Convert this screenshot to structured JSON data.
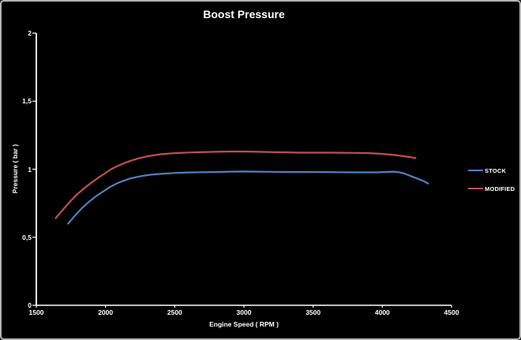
{
  "window": {
    "background": "#000000",
    "frame_border_color": "#b5b5b5",
    "text_color": "#ffffff",
    "axis_color": "#ffffff"
  },
  "chart_data": {
    "type": "line",
    "title": "Boost Pressure",
    "xlabel": "Engine Speed ( RPM )",
    "ylabel": "Pressure ( bar )",
    "xlim": [
      1500,
      4500
    ],
    "ylim": [
      0,
      2
    ],
    "grid": false,
    "legend_position": "right-middle",
    "xticks": {
      "values": [
        1500,
        2000,
        2500,
        3000,
        3500,
        4000,
        4500
      ],
      "labels": [
        "1500",
        "2000",
        "2500",
        "3000",
        "3500",
        "4000",
        "4500"
      ]
    },
    "yticks": {
      "values": [
        0,
        0.5,
        1,
        1.5,
        2
      ],
      "labels": [
        "0",
        "0,5",
        "1",
        "1,5",
        "2"
      ]
    },
    "series": [
      {
        "name": "STOCK",
        "color": "#4f81bd",
        "x": [
          1730,
          1780,
          1830,
          1880,
          1930,
          1980,
          2030,
          2080,
          2130,
          2180,
          2230,
          2280,
          2330,
          2400,
          2500,
          2600,
          2700,
          2800,
          2900,
          3000,
          3100,
          3200,
          3300,
          3400,
          3500,
          3600,
          3700,
          3800,
          3900,
          3960,
          4020,
          4080,
          4120,
          4160,
          4200,
          4250,
          4300,
          4330
        ],
        "y": [
          0.6,
          0.66,
          0.715,
          0.76,
          0.8,
          0.835,
          0.868,
          0.895,
          0.915,
          0.932,
          0.944,
          0.953,
          0.96,
          0.966,
          0.972,
          0.976,
          0.978,
          0.98,
          0.982,
          0.983,
          0.982,
          0.981,
          0.98,
          0.98,
          0.98,
          0.979,
          0.978,
          0.977,
          0.977,
          0.977,
          0.98,
          0.982,
          0.978,
          0.968,
          0.952,
          0.932,
          0.912,
          0.895
        ]
      },
      {
        "name": "MODIFIED",
        "color": "#c0504d",
        "x": [
          1640,
          1690,
          1740,
          1790,
          1840,
          1890,
          1940,
          1990,
          2040,
          2090,
          2140,
          2190,
          2240,
          2290,
          2340,
          2400,
          2500,
          2600,
          2700,
          2800,
          2900,
          3000,
          3100,
          3200,
          3300,
          3400,
          3500,
          3600,
          3700,
          3800,
          3900,
          4000,
          4080,
          4150,
          4200,
          4240
        ],
        "y": [
          0.64,
          0.7,
          0.758,
          0.81,
          0.855,
          0.895,
          0.932,
          0.965,
          1.0,
          1.025,
          1.047,
          1.065,
          1.08,
          1.092,
          1.101,
          1.11,
          1.118,
          1.123,
          1.126,
          1.128,
          1.13,
          1.13,
          1.128,
          1.126,
          1.124,
          1.122,
          1.122,
          1.122,
          1.121,
          1.12,
          1.118,
          1.113,
          1.105,
          1.096,
          1.089,
          1.082
        ]
      }
    ]
  }
}
